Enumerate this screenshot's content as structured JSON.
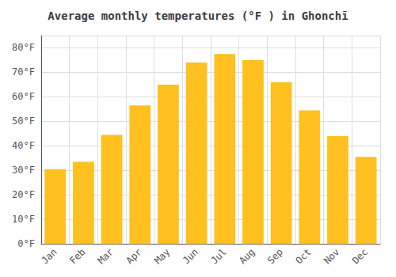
{
  "chart_data": {
    "type": "bar",
    "title": "Average monthly temperatures (°F ) in Ghonchī",
    "categories": [
      "Jan",
      "Feb",
      "Mar",
      "Apr",
      "May",
      "Jun",
      "Jul",
      "Aug",
      "Sep",
      "Oct",
      "Nov",
      "Dec"
    ],
    "values": [
      30.5,
      33.5,
      44.5,
      56.5,
      65.0,
      74.0,
      77.5,
      75.0,
      66.0,
      54.5,
      44.0,
      35.5
    ],
    "color": "#FFC020",
    "ylim": [
      0,
      85
    ],
    "yticks": [
      {
        "value": 0,
        "label": "0°F"
      },
      {
        "value": 10,
        "label": "10°F"
      },
      {
        "value": 20,
        "label": "20°F"
      },
      {
        "value": 30,
        "label": "30°F"
      },
      {
        "value": 40,
        "label": "40°F"
      },
      {
        "value": 50,
        "label": "50°F"
      },
      {
        "value": 60,
        "label": "60°F"
      },
      {
        "value": 70,
        "label": "70°F"
      },
      {
        "value": 80,
        "label": "80°F"
      }
    ],
    "grid": true
  }
}
